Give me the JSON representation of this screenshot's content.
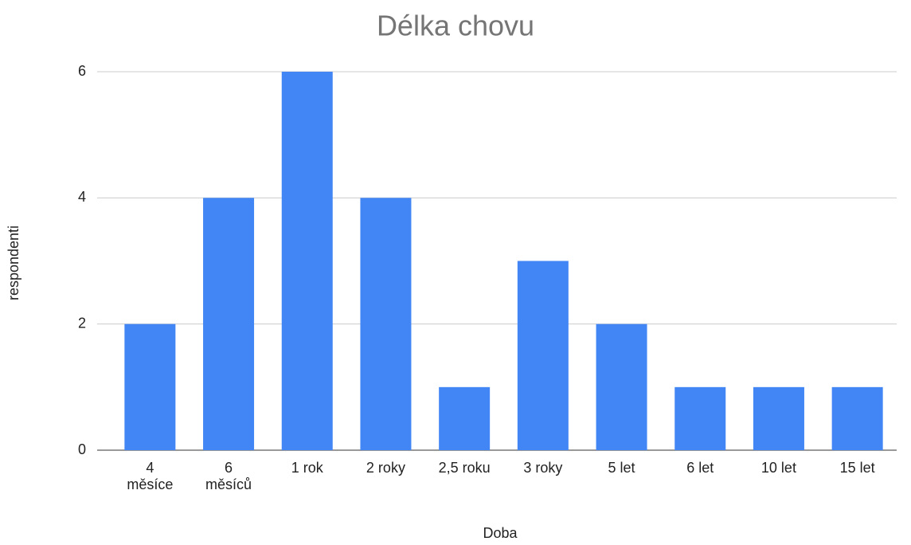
{
  "chart_data": {
    "type": "bar",
    "title": "Délka chovu",
    "x_label": "Doba",
    "y_label": "respondenti",
    "categories": [
      "4 měsíce",
      "6 měsíců",
      "1 rok",
      "2 roky",
      "2,5 roku",
      "3 roky",
      "5 let",
      "6 let",
      "10 let",
      "15 let"
    ],
    "values": [
      2,
      4,
      6,
      4,
      1,
      3,
      2,
      1,
      1,
      1
    ],
    "color": "#4285f4",
    "ylim": [
      0,
      6
    ],
    "yticks": [
      0,
      2,
      4,
      6
    ],
    "grid": true
  }
}
